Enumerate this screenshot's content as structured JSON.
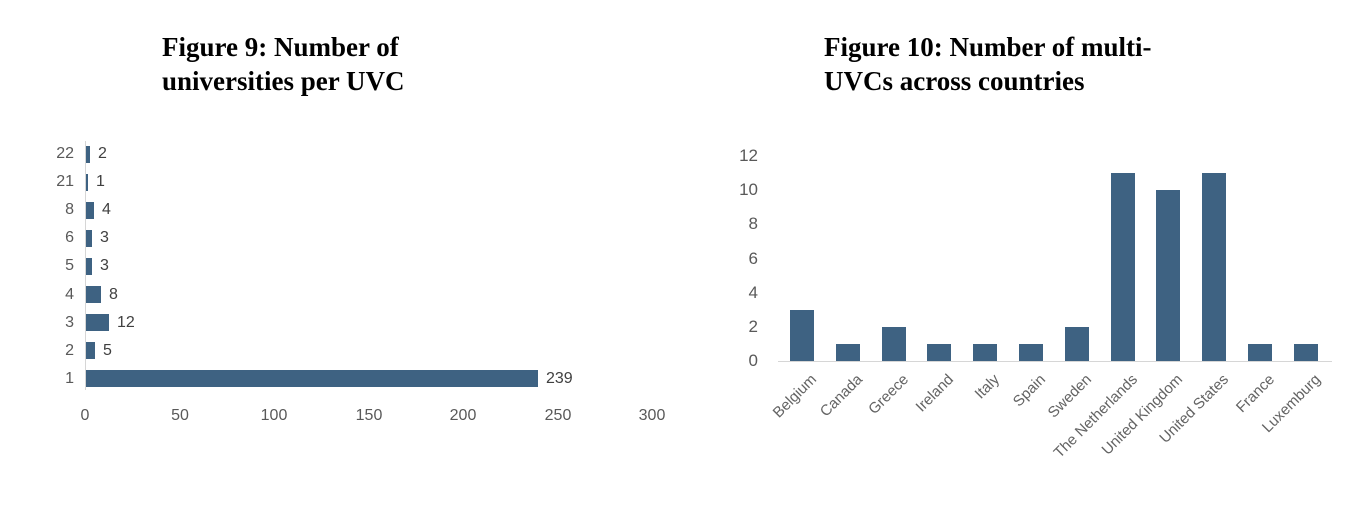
{
  "page": {
    "background": "#ffffff"
  },
  "chart_data": [
    {
      "id": "figure9",
      "type": "bar",
      "orientation": "horizontal",
      "title": "Figure 9: Number of universities per UVC",
      "title_lines": [
        "Figure 9: Number of",
        "universities per UVC"
      ],
      "categories": [
        "22",
        "21",
        "8",
        "6",
        "5",
        "4",
        "3",
        "2",
        "1"
      ],
      "values": [
        2,
        1,
        4,
        3,
        3,
        8,
        12,
        5,
        239
      ],
      "data_labels_shown": true,
      "xlabel": "",
      "ylabel": "",
      "xlim": [
        0,
        300
      ],
      "x_ticks": [
        0,
        50,
        100,
        150,
        200,
        250,
        300
      ],
      "grid": false,
      "legend": false,
      "bar_color": "#3e6282",
      "axis_line_color": "#d6d6d6",
      "axis_label_color": "#595959",
      "data_label_color": "#404040"
    },
    {
      "id": "figure10",
      "type": "bar",
      "orientation": "vertical",
      "title": "Figure 10: Number of multi-UVCs across countries",
      "title_lines": [
        "Figure 10: Number of multi-",
        "UVCs across countries"
      ],
      "categories": [
        "Belgium",
        "Canada",
        "Greece",
        "Ireland",
        "Italy",
        "Spain",
        "Sweden",
        "The Netherlands",
        "United Kingdom",
        "United States",
        "France",
        "Luxemburg"
      ],
      "values": [
        3,
        1,
        2,
        1,
        1,
        1,
        2,
        11,
        10,
        11,
        1,
        1
      ],
      "data_labels_shown": false,
      "xlabel": "",
      "ylabel": "",
      "ylim": [
        0,
        12
      ],
      "y_ticks": [
        0,
        2,
        4,
        6,
        8,
        10,
        12
      ],
      "x_tick_rotation_deg": 45,
      "grid": false,
      "legend": false,
      "bar_color": "#3e6282",
      "axis_line_color": "#d6d6d6",
      "axis_label_color": "#595959"
    }
  ]
}
